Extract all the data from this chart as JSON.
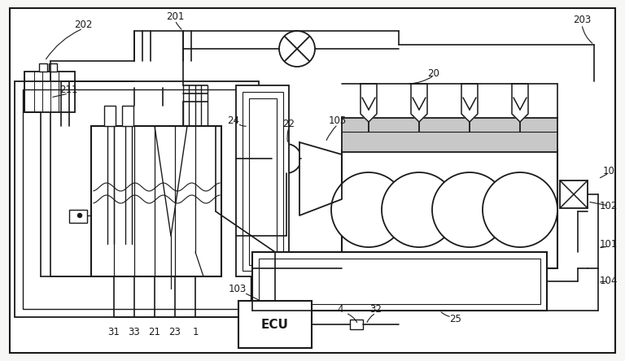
{
  "bg_color": "#f7f7f5",
  "line_color": "#1a1a1a",
  "gray_fill": "#c8c8c8",
  "white_fill": "#ffffff"
}
